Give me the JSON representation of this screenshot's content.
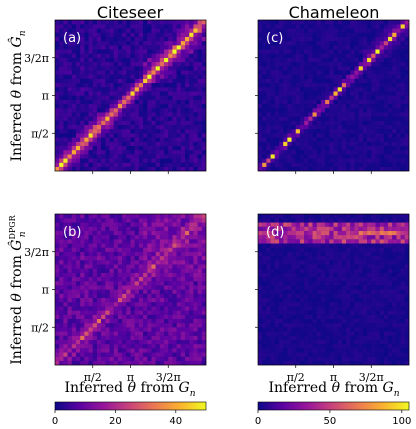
{
  "chart_data": [
    {
      "type": "heatmap",
      "panel_label": "(a)",
      "title": "Citeseer",
      "ylabel": "Inferred θ from Ĝ_n",
      "xlabel": "",
      "x_tick_labels": [
        "π/2",
        "π",
        "3/2π"
      ],
      "y_tick_labels": [
        "3/2π",
        "π",
        "π/2"
      ],
      "grid_size": 36,
      "colorbar": "cb1",
      "pattern": "strong diagonal with off-diagonal clusters"
    },
    {
      "type": "heatmap",
      "panel_label": "(c)",
      "title": "Chameleon",
      "ylabel": "",
      "xlabel": "",
      "x_tick_labels": [
        "π/2",
        "π",
        "3/2π"
      ],
      "y_tick_labels": [
        "3/2π",
        "π",
        "π/2"
      ],
      "grid_size": 36,
      "colorbar": "cb2",
      "pattern": "sparse diagonal"
    },
    {
      "type": "heatmap",
      "panel_label": "(b)",
      "title": "",
      "ylabel": "Inferred θ from Ĝ_n^DPGR",
      "xlabel": "Inferred θ from G_n",
      "x_tick_labels": [
        "π/2",
        "π",
        "3/2π"
      ],
      "y_tick_labels": [
        "3/2π",
        "π",
        "π/2"
      ],
      "grid_size": 36,
      "colorbar": "cb1",
      "pattern": "diffuse with faint diagonal"
    },
    {
      "type": "heatmap",
      "panel_label": "(d)",
      "title": "",
      "ylabel": "",
      "xlabel": "Inferred θ from G_n",
      "x_tick_labels": [
        "π/2",
        "π",
        "3/2π"
      ],
      "y_tick_labels": [
        "3/2π",
        "π",
        "π/2"
      ],
      "grid_size": 36,
      "colorbar": "cb2",
      "pattern": "horizontal band near top"
    }
  ],
  "colorbars": {
    "cb1": {
      "min": 0,
      "max": 50,
      "ticks": [
        0,
        20,
        40
      ]
    },
    "cb2": {
      "min": 0,
      "max": 105,
      "ticks": [
        0,
        50,
        100
      ]
    }
  },
  "colormap": [
    "#0d0887",
    "#5b02a3",
    "#9a179b",
    "#cb4678",
    "#eb7852",
    "#fbb32f",
    "#f0f921"
  ],
  "text": {
    "title_citeseer": "Citeseer",
    "title_chameleon": "Chameleon",
    "label_a": "(a)",
    "label_b": "(b)",
    "label_c": "(c)",
    "label_d": "(d)",
    "ylabel_top_prefix": "Inferred ",
    "ylabel_bottom_prefix": "Inferred ",
    "xlabel_prefix": "Inferred ",
    "theta": "θ",
    "from": " from ",
    "g_sym": "G",
    "g_hat_sym": "Ĝ",
    "n_sub": "n",
    "dpgr_sup": "DPGR",
    "tick_pi_half": "π/2",
    "tick_pi": "π",
    "tick_three_half_pi": "3/2π",
    "cb1_t0": "0",
    "cb1_t1": "20",
    "cb1_t2": "40",
    "cb2_t0": "0",
    "cb2_t1": "50",
    "cb2_t2": "100"
  }
}
